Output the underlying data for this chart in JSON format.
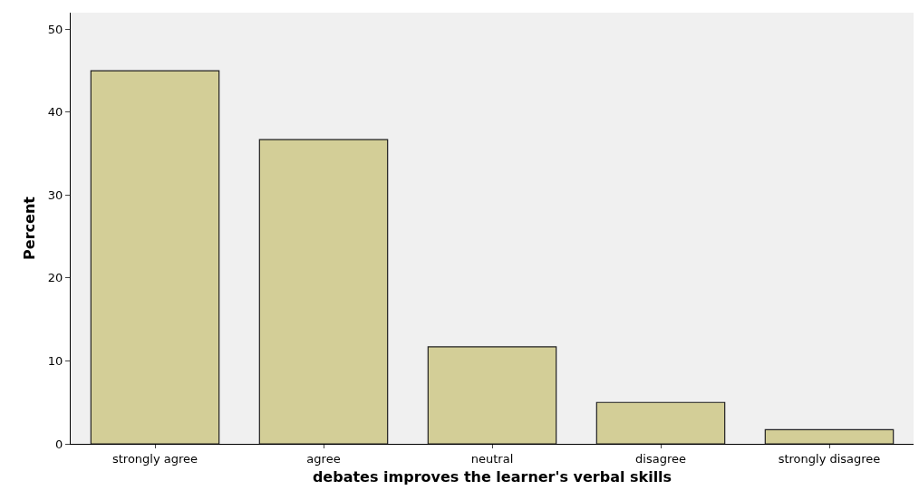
{
  "chart_data": {
    "type": "bar",
    "xlabel": "debates improves the learner's verbal skills",
    "ylabel": "Percent",
    "categories": [
      "strongly agree",
      "agree",
      "neutral",
      "disagree",
      "strongly disagree"
    ],
    "values": [
      45,
      36.7,
      11.7,
      5,
      1.7
    ],
    "color": "#d3ce97",
    "ylim": [
      0,
      52
    ],
    "yticks": [
      0,
      10,
      20,
      30,
      40,
      50
    ],
    "grid": false
  }
}
